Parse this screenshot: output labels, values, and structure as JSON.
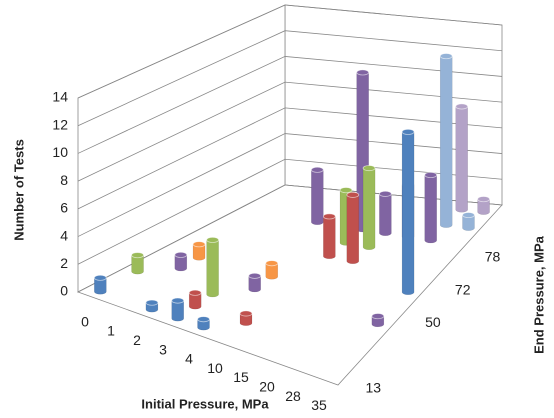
{
  "chart_data": {
    "type": "bar3d",
    "y_label": "Number of Tests",
    "x_label": "Initial Pressure, MPa",
    "z_label": "End Pressure, MPa",
    "categories": [
      "0",
      "1",
      "2",
      "3",
      "4",
      "10",
      "15",
      "20",
      "28",
      "35"
    ],
    "z_categories": [
      "13",
      null,
      null,
      null,
      "50",
      null,
      "72",
      null,
      "78",
      null,
      null
    ],
    "ylim": [
      0,
      14
    ],
    "yticks": [
      0,
      2,
      4,
      6,
      8,
      10,
      12,
      14
    ],
    "grid": true,
    "series": [
      {
        "color": "#4f81bd",
        "values": [
          1,
          null,
          0.5,
          1.3,
          0.6,
          null,
          null,
          null,
          null,
          null
        ]
      },
      {
        "color": "#c0504d",
        "values": [
          null,
          null,
          null,
          1,
          null,
          0.7,
          null,
          null,
          null,
          null
        ]
      },
      {
        "color": "#9bbb59",
        "values": [
          1.2,
          null,
          null,
          4,
          null,
          null,
          null,
          null,
          null,
          null
        ]
      },
      {
        "color": "#8064a2",
        "values": [
          null,
          1,
          null,
          null,
          1,
          null,
          null,
          null,
          null,
          0.6
        ]
      },
      {
        "color": "#f79646",
        "values": [
          null,
          1,
          null,
          null,
          1,
          null,
          null,
          null,
          null,
          null
        ]
      },
      {
        "color": "#4f81bd",
        "values": [
          null,
          null,
          null,
          null,
          null,
          null,
          null,
          null,
          null,
          12
        ]
      },
      {
        "color": "#c0504d",
        "values": [
          null,
          null,
          null,
          null,
          null,
          3,
          5,
          null,
          null,
          null
        ]
      },
      {
        "color": "#9bbb59",
        "values": [
          null,
          null,
          null,
          null,
          null,
          4,
          6,
          null,
          null,
          null
        ]
      },
      {
        "color": "#8064a2",
        "values": [
          null,
          null,
          null,
          4,
          null,
          12,
          3,
          4,
          5,
          null
        ]
      },
      {
        "color": "#95b3d7",
        "values": [
          null,
          null,
          null,
          null,
          null,
          null,
          null,
          null,
          13,
          1
        ]
      },
      {
        "color": "#b3a2c7",
        "values": [
          null,
          null,
          null,
          null,
          null,
          null,
          null,
          null,
          8,
          1
        ]
      }
    ]
  }
}
